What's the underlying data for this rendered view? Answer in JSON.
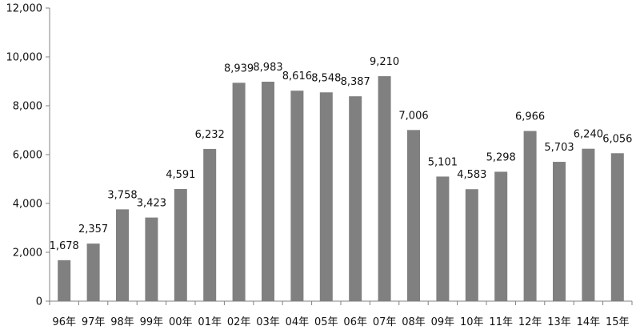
{
  "chart_data": {
    "type": "bar",
    "title": "",
    "xlabel": "",
    "ylabel": "",
    "categories": [
      "96年",
      "97年",
      "98年",
      "99年",
      "00年",
      "01年",
      "02年",
      "03年",
      "04年",
      "05年",
      "06年",
      "07年",
      "08年",
      "09年",
      "10年",
      "11年",
      "12年",
      "13年",
      "14年",
      "15年"
    ],
    "values": [
      1678,
      2357,
      3758,
      3423,
      4591,
      6232,
      8939,
      8983,
      8616,
      8548,
      8387,
      9210,
      7006,
      5101,
      4583,
      5298,
      6966,
      5703,
      6240,
      6056
    ],
    "data_labels": [
      "1,678",
      "2,357",
      "3,758",
      "3,423",
      "4,591",
      "6,232",
      "8,939",
      "8,983",
      "8,616",
      "8,548",
      "8,387",
      "9,210",
      "7,006",
      "5,101",
      "4,583",
      "5,298",
      "6,966",
      "5,703",
      "6,240",
      "6,056"
    ],
    "ylim": [
      0,
      12000
    ],
    "yticks": [
      0,
      2000,
      4000,
      6000,
      8000,
      10000,
      12000
    ],
    "ytick_labels": [
      "0",
      "2,000",
      "4,000",
      "6,000",
      "8,000",
      "10,000",
      "12,000"
    ],
    "grid": false,
    "legend": "none",
    "bar_color": "#808080",
    "axis_color": "#808080"
  }
}
